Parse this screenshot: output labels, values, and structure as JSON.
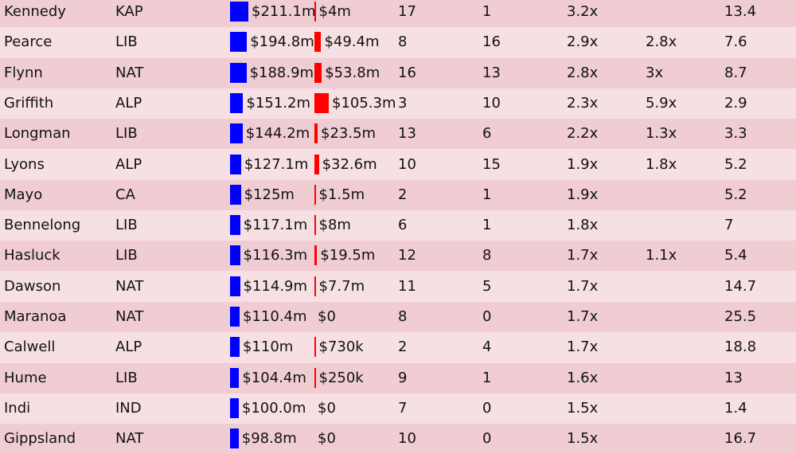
{
  "colors": {
    "row_odd": "#efcdd3",
    "row_even": "#f6e0e4",
    "bar_a": "#0000ff",
    "bar_b": "#ff0000"
  },
  "table": {
    "rows": [
      {
        "electorate": "Kennedy",
        "party": "KAP",
        "grant_a": "$211.1m",
        "grant_a_m": 211.1,
        "grant_b": "$4m",
        "grant_b_m": 4,
        "rank_a": "17",
        "rank_b": "1",
        "ratio_a": "3.2x",
        "ratio_b": "",
        "margin": "13.4"
      },
      {
        "electorate": "Pearce",
        "party": "LIB",
        "grant_a": "$194.8m",
        "grant_a_m": 194.8,
        "grant_b": "$49.4m",
        "grant_b_m": 49.4,
        "rank_a": "8",
        "rank_b": "16",
        "ratio_a": "2.9x",
        "ratio_b": "2.8x",
        "margin": "7.6"
      },
      {
        "electorate": "Flynn",
        "party": "NAT",
        "grant_a": "$188.9m",
        "grant_a_m": 188.9,
        "grant_b": "$53.8m",
        "grant_b_m": 53.8,
        "rank_a": "16",
        "rank_b": "13",
        "ratio_a": "2.8x",
        "ratio_b": "3x",
        "margin": "8.7"
      },
      {
        "electorate": "Griffith",
        "party": "ALP",
        "grant_a": "$151.2m",
        "grant_a_m": 151.2,
        "grant_b": "$105.3m",
        "grant_b_m": 105.3,
        "rank_a": "3",
        "rank_b": "10",
        "ratio_a": "2.3x",
        "ratio_b": "5.9x",
        "margin": "2.9"
      },
      {
        "electorate": "Longman",
        "party": "LIB",
        "grant_a": "$144.2m",
        "grant_a_m": 144.2,
        "grant_b": "$23.5m",
        "grant_b_m": 23.5,
        "rank_a": "13",
        "rank_b": "6",
        "ratio_a": "2.2x",
        "ratio_b": "1.3x",
        "margin": "3.3"
      },
      {
        "electorate": "Lyons",
        "party": "ALP",
        "grant_a": "$127.1m",
        "grant_a_m": 127.1,
        "grant_b": "$32.6m",
        "grant_b_m": 32.6,
        "rank_a": "10",
        "rank_b": "15",
        "ratio_a": "1.9x",
        "ratio_b": "1.8x",
        "margin": "5.2"
      },
      {
        "electorate": "Mayo",
        "party": "CA",
        "grant_a": "$125m",
        "grant_a_m": 125,
        "grant_b": "$1.5m",
        "grant_b_m": 1.5,
        "rank_a": "2",
        "rank_b": "1",
        "ratio_a": "1.9x",
        "ratio_b": "",
        "margin": "5.2"
      },
      {
        "electorate": "Bennelong",
        "party": "LIB",
        "grant_a": "$117.1m",
        "grant_a_m": 117.1,
        "grant_b": "$8m",
        "grant_b_m": 8,
        "rank_a": "6",
        "rank_b": "1",
        "ratio_a": "1.8x",
        "ratio_b": "",
        "margin": "7"
      },
      {
        "electorate": "Hasluck",
        "party": "LIB",
        "grant_a": "$116.3m",
        "grant_a_m": 116.3,
        "grant_b": "$19.5m",
        "grant_b_m": 19.5,
        "rank_a": "12",
        "rank_b": "8",
        "ratio_a": "1.7x",
        "ratio_b": "1.1x",
        "margin": "5.4"
      },
      {
        "electorate": "Dawson",
        "party": "NAT",
        "grant_a": "$114.9m",
        "grant_a_m": 114.9,
        "grant_b": "$7.7m",
        "grant_b_m": 7.7,
        "rank_a": "11",
        "rank_b": "5",
        "ratio_a": "1.7x",
        "ratio_b": "",
        "margin": "14.7"
      },
      {
        "electorate": "Maranoa",
        "party": "NAT",
        "grant_a": "$110.4m",
        "grant_a_m": 110.4,
        "grant_b": "$0",
        "grant_b_m": 0,
        "rank_a": "8",
        "rank_b": "0",
        "ratio_a": "1.7x",
        "ratio_b": "",
        "margin": "25.5"
      },
      {
        "electorate": "Calwell",
        "party": "ALP",
        "grant_a": "$110m",
        "grant_a_m": 110,
        "grant_b": "$730k",
        "grant_b_m": 0.73,
        "rank_a": "2",
        "rank_b": "4",
        "ratio_a": "1.7x",
        "ratio_b": "",
        "margin": "18.8"
      },
      {
        "electorate": "Hume",
        "party": "LIB",
        "grant_a": "$104.4m",
        "grant_a_m": 104.4,
        "grant_b": "$250k",
        "grant_b_m": 0.25,
        "rank_a": "9",
        "rank_b": "1",
        "ratio_a": "1.6x",
        "ratio_b": "",
        "margin": "13"
      },
      {
        "electorate": "Indi",
        "party": "IND",
        "grant_a": "$100.0m",
        "grant_a_m": 100.0,
        "grant_b": "$0",
        "grant_b_m": 0,
        "rank_a": "7",
        "rank_b": "0",
        "ratio_a": "1.5x",
        "ratio_b": "",
        "margin": "1.4"
      },
      {
        "electorate": "Gippsland",
        "party": "NAT",
        "grant_a": "$98.8m",
        "grant_a_m": 98.8,
        "grant_b": "$0",
        "grant_b_m": 0,
        "rank_a": "10",
        "rank_b": "0",
        "ratio_a": "1.5x",
        "ratio_b": "",
        "margin": "16.7"
      }
    ]
  }
}
